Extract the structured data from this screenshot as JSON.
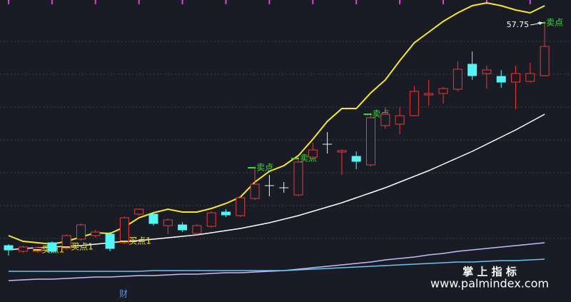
{
  "chart_data": {
    "type": "candlestick",
    "ylim": [
      38.1,
      59.25
    ],
    "up_color": "#e8393b",
    "down_color": "#54f5f5",
    "flat_color": "#e8f4ff",
    "buy_color": "#f0e030",
    "sell_color": "#2fe02f",
    "candles": [
      {
        "open": 42.05,
        "high": 42.15,
        "low": 41.35,
        "close": 41.75
      },
      {
        "open": 41.65,
        "high": 42.05,
        "low": 41.55,
        "close": 41.95
      },
      {
        "open": 41.65,
        "high": 42.0,
        "low": 41.55,
        "close": 41.9,
        "signal": "买点1"
      },
      {
        "open": 42.25,
        "high": 42.35,
        "low": 41.55,
        "close": 41.65
      },
      {
        "open": 41.85,
        "high": 42.85,
        "low": 41.75,
        "close": 42.75,
        "signal": "买点1"
      },
      {
        "open": 42.5,
        "high": 43.6,
        "low": 42.4,
        "close": 43.5
      },
      {
        "open": 42.75,
        "high": 43.15,
        "low": 42.6,
        "close": 43.0
      },
      {
        "open": 42.85,
        "high": 43.0,
        "low": 41.65,
        "close": 41.85
      },
      {
        "open": 42.25,
        "high": 44.1,
        "low": 42.15,
        "close": 44.0,
        "signal": "买点1"
      },
      {
        "open": 44.25,
        "high": 44.65,
        "low": 44.15,
        "close": 44.6
      },
      {
        "open": 44.25,
        "high": 44.35,
        "low": 43.45,
        "close": 43.6
      },
      {
        "open": 43.45,
        "high": 43.95,
        "low": 42.85,
        "close": 43.85
      },
      {
        "open": 43.5,
        "high": 43.7,
        "low": 43.0,
        "close": 43.15
      },
      {
        "open": 42.9,
        "high": 43.55,
        "low": 42.8,
        "close": 43.45
      },
      {
        "open": 43.4,
        "high": 44.45,
        "low": 43.3,
        "close": 44.35
      },
      {
        "open": 44.4,
        "high": 44.6,
        "low": 44.05,
        "close": 44.2
      },
      {
        "open": 44.15,
        "high": 45.5,
        "low": 44.05,
        "close": 45.4
      },
      {
        "open": 45.35,
        "high": 47.6,
        "low": 45.25,
        "close": 46.35,
        "signal": "卖点"
      },
      {
        "open": 46.25,
        "high": 47.0,
        "low": 45.5,
        "close": 46.25
      },
      {
        "open": 46.1,
        "high": 46.5,
        "low": 45.75,
        "close": 46.1
      },
      {
        "open": 45.6,
        "high": 48.25,
        "low": 45.5,
        "close": 47.9,
        "signal": "卖点"
      },
      {
        "open": 48.25,
        "high": 49.25,
        "low": 48.15,
        "close": 48.75
      },
      {
        "open": 49.15,
        "high": 50.0,
        "low": 48.5,
        "close": 49.15
      },
      {
        "open": 48.6,
        "high": 48.8,
        "low": 47.0,
        "close": 48.7
      },
      {
        "open": 48.3,
        "high": 48.65,
        "low": 47.4,
        "close": 47.95
      },
      {
        "open": 47.7,
        "high": 51.35,
        "low": 47.6,
        "close": 51.0,
        "signal": "卖点"
      },
      {
        "open": 50.45,
        "high": 51.75,
        "low": 50.25,
        "close": 51.25
      },
      {
        "open": 50.55,
        "high": 51.75,
        "low": 49.85,
        "close": 51.15
      },
      {
        "open": 51.15,
        "high": 53.25,
        "low": 51.1,
        "close": 52.85
      },
      {
        "open": 52.6,
        "high": 53.65,
        "low": 51.85,
        "close": 52.7
      },
      {
        "open": 52.7,
        "high": 53.15,
        "low": 52.0,
        "close": 53.05
      },
      {
        "open": 53.0,
        "high": 54.95,
        "low": 52.85,
        "close": 54.4
      },
      {
        "open": 54.75,
        "high": 55.65,
        "low": 53.65,
        "close": 53.95
      },
      {
        "open": 54.1,
        "high": 54.65,
        "low": 53.05,
        "close": 54.35
      },
      {
        "open": 53.9,
        "high": 54.35,
        "low": 53.1,
        "close": 53.5
      },
      {
        "open": 53.5,
        "high": 54.65,
        "low": 51.6,
        "close": 54.1
      },
      {
        "open": 53.55,
        "high": 54.85,
        "low": 53.45,
        "close": 54.1
      },
      {
        "open": 53.95,
        "high": 57.75,
        "low": 53.9,
        "close": 56.0,
        "signal": "卖点"
      }
    ],
    "series": [
      {
        "color": "#f5e829",
        "values": [
          42.75,
          42.35,
          42.25,
          42.15,
          42.35,
          42.65,
          42.95,
          42.9,
          43.35,
          44.0,
          44.35,
          44.6,
          44.4,
          44.4,
          44.65,
          45.0,
          45.45,
          46.5,
          47.25,
          47.65,
          48.35,
          49.5,
          50.75,
          51.65,
          51.65,
          52.75,
          53.65,
          55.0,
          56.25,
          57.0,
          57.75,
          58.35,
          58.85,
          59.05,
          58.85,
          58.55,
          58.35,
          58.85
        ]
      },
      {
        "color": "#ffffff",
        "values": [
          41.75,
          41.85,
          41.9,
          41.95,
          42.0,
          42.05,
          42.15,
          42.25,
          42.35,
          42.4,
          42.5,
          42.6,
          42.7,
          42.8,
          42.95,
          43.1,
          43.25,
          43.45,
          43.65,
          43.9,
          44.15,
          44.45,
          44.75,
          45.05,
          45.4,
          45.75,
          46.1,
          46.5,
          46.9,
          47.3,
          47.75,
          48.2,
          48.65,
          49.15,
          49.65,
          50.15,
          50.7,
          51.25
        ]
      },
      {
        "color": "#c9b8ff",
        "values": [
          39.6,
          39.65,
          39.7,
          39.7,
          39.75,
          39.8,
          39.85,
          39.85,
          39.9,
          39.95,
          39.95,
          40.0,
          40.05,
          40.05,
          40.1,
          40.15,
          40.15,
          40.2,
          40.25,
          40.3,
          40.4,
          40.5,
          40.6,
          40.7,
          40.8,
          40.9,
          41.05,
          41.15,
          41.25,
          41.4,
          41.5,
          41.65,
          41.75,
          41.85,
          41.95,
          42.05,
          42.15,
          42.25
        ]
      },
      {
        "color": "#6ac4f0",
        "values": [
          40.25,
          40.25,
          40.25,
          40.25,
          40.25,
          40.25,
          40.25,
          40.25,
          40.25,
          40.25,
          40.3,
          40.3,
          40.3,
          40.3,
          40.3,
          40.3,
          40.3,
          40.3,
          40.3,
          40.3,
          40.35,
          40.4,
          40.45,
          40.5,
          40.55,
          40.6,
          40.65,
          40.7,
          40.75,
          40.8,
          40.85,
          40.9,
          40.9,
          40.95,
          41.0,
          41.0,
          41.05,
          41.1
        ]
      }
    ]
  },
  "watermark_title": "掌 上 指 标",
  "watermark_url": "www.palmindex.com",
  "footer_label": "财"
}
